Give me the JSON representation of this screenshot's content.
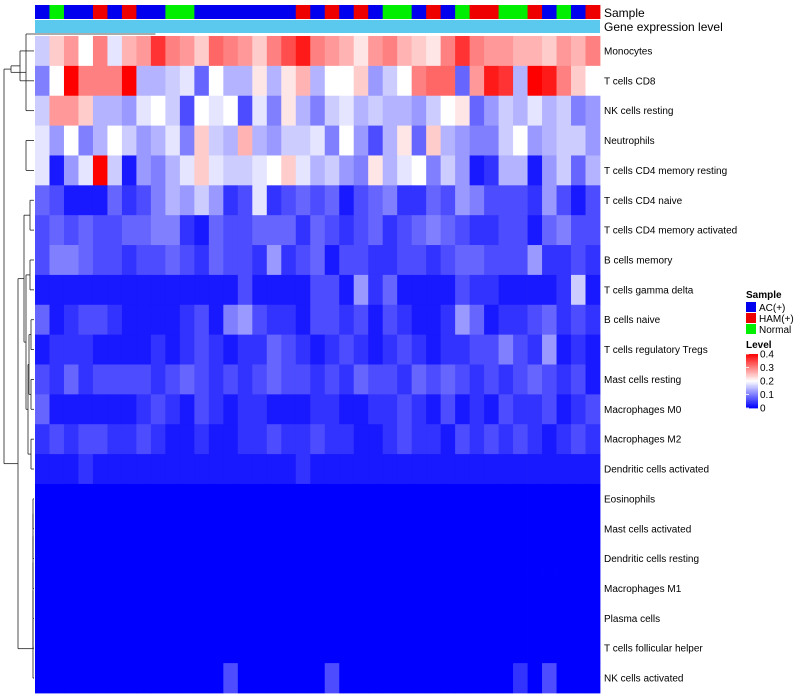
{
  "chart_data": {
    "type": "heatmap",
    "annotation_labels": {
      "sample": "Sample",
      "gene_expression": "Gene expression level"
    },
    "legend": {
      "sample_title": "Sample",
      "groups": [
        {
          "name": "AC(+)",
          "color": "#0000EE"
        },
        {
          "name": "HAM(+)",
          "color": "#EE0000"
        },
        {
          "name": "Normal",
          "color": "#00EE00"
        }
      ],
      "level_title": "Level",
      "level_ticks": [
        "0.4",
        "0.3",
        "0.2",
        "0.1",
        "0"
      ],
      "scale": {
        "min": 0,
        "max": 0.4,
        "low": "#0000FF",
        "mid": "#FFFFFF",
        "high": "#FF0000"
      }
    },
    "expression_bar_color": "#5BC8EE",
    "row_labels": [
      "Monocytes",
      "T cells CD8",
      "NK cells resting",
      "Neutrophils",
      "T cells CD4 memory resting",
      "T cells CD4 naive",
      "T cells CD4 memory activated",
      "B cells memory",
      "T cells gamma delta",
      "B cells naive",
      "T cells regulatory  Tregs",
      "Mast cells resting",
      "Macrophages M0",
      "Macrophages M2",
      "Dendritic cells activated",
      "Eosinophils",
      "Mast cells activated",
      "Dendritic cells resting",
      "Macrophages M1",
      "Plasma cells",
      "T cells follicular helper",
      "NK cells activated"
    ],
    "sample_groups": [
      "AC(+)",
      "Normal",
      "AC(+)",
      "AC(+)",
      "HAM(+)",
      "AC(+)",
      "HAM(+)",
      "AC(+)",
      "AC(+)",
      "Normal",
      "Normal",
      "AC(+)",
      "AC(+)",
      "AC(+)",
      "AC(+)",
      "AC(+)",
      "AC(+)",
      "AC(+)",
      "HAM(+)",
      "AC(+)",
      "HAM(+)",
      "AC(+)",
      "HAM(+)",
      "AC(+)",
      "Normal",
      "Normal",
      "AC(+)",
      "HAM(+)",
      "AC(+)",
      "Normal",
      "HAM(+)",
      "HAM(+)",
      "Normal",
      "Normal",
      "HAM(+)",
      "AC(+)",
      "Normal",
      "AC(+)",
      "HAM(+)"
    ],
    "values": [
      [
        0.16,
        0.24,
        0.28,
        0.2,
        0.3,
        0.18,
        0.26,
        0.28,
        0.36,
        0.3,
        0.28,
        0.24,
        0.32,
        0.3,
        0.28,
        0.24,
        0.3,
        0.34,
        0.38,
        0.3,
        0.28,
        0.26,
        0.22,
        0.28,
        0.3,
        0.26,
        0.24,
        0.22,
        0.3,
        0.36,
        0.3,
        0.28,
        0.28,
        0.26,
        0.26,
        0.24,
        0.28,
        0.26,
        0.3
      ],
      [
        0.1,
        0.2,
        0.4,
        0.3,
        0.3,
        0.3,
        0.4,
        0.14,
        0.14,
        0.16,
        0.18,
        0.08,
        0.2,
        0.14,
        0.14,
        0.22,
        0.14,
        0.22,
        0.26,
        0.14,
        0.2,
        0.2,
        0.24,
        0.12,
        0.16,
        0.2,
        0.3,
        0.32,
        0.32,
        0.08,
        0.28,
        0.38,
        0.36,
        0.14,
        0.4,
        0.38,
        0.3,
        0.24,
        0.2
      ],
      [
        0.16,
        0.28,
        0.28,
        0.24,
        0.14,
        0.14,
        0.12,
        0.18,
        0.2,
        0.16,
        0.06,
        0.2,
        0.18,
        0.2,
        0.06,
        0.18,
        0.1,
        0.22,
        0.14,
        0.1,
        0.16,
        0.18,
        0.14,
        0.16,
        0.14,
        0.14,
        0.12,
        0.16,
        0.2,
        0.22,
        0.08,
        0.12,
        0.16,
        0.14,
        0.18,
        0.14,
        0.16,
        0.1,
        0.12
      ],
      [
        0.18,
        0.12,
        0.2,
        0.1,
        0.14,
        0.2,
        0.16,
        0.12,
        0.14,
        0.18,
        0.1,
        0.24,
        0.16,
        0.14,
        0.26,
        0.14,
        0.12,
        0.16,
        0.16,
        0.18,
        0.1,
        0.2,
        0.12,
        0.06,
        0.14,
        0.22,
        0.08,
        0.24,
        0.14,
        0.12,
        0.1,
        0.1,
        0.16,
        0.2,
        0.12,
        0.14,
        0.16,
        0.16,
        0.12
      ],
      [
        0.18,
        0.02,
        0.12,
        0.18,
        0.4,
        0.16,
        0.02,
        0.12,
        0.1,
        0.14,
        0.18,
        0.24,
        0.18,
        0.16,
        0.16,
        0.18,
        0.2,
        0.24,
        0.18,
        0.14,
        0.16,
        0.12,
        0.1,
        0.22,
        0.14,
        0.18,
        0.2,
        0.1,
        0.16,
        0.12,
        0.02,
        0.04,
        0.14,
        0.14,
        0.02,
        0.12,
        0.16,
        0.08,
        0.14
      ],
      [
        0.08,
        0.06,
        0.02,
        0.02,
        0.02,
        0.08,
        0.04,
        0.06,
        0.1,
        0.14,
        0.12,
        0.16,
        0.12,
        0.04,
        0.06,
        0.18,
        0.04,
        0.06,
        0.08,
        0.06,
        0.08,
        0.02,
        0.06,
        0.08,
        0.1,
        0.04,
        0.04,
        0.08,
        0.06,
        0.12,
        0.1,
        0.06,
        0.06,
        0.06,
        0.04,
        0.12,
        0.06,
        0.02,
        0.06
      ],
      [
        0.06,
        0.08,
        0.06,
        0.08,
        0.06,
        0.06,
        0.08,
        0.08,
        0.1,
        0.1,
        0.04,
        0.02,
        0.08,
        0.06,
        0.06,
        0.08,
        0.08,
        0.08,
        0.04,
        0.08,
        0.06,
        0.04,
        0.06,
        0.08,
        0.04,
        0.06,
        0.08,
        0.1,
        0.08,
        0.06,
        0.04,
        0.04,
        0.06,
        0.06,
        0.02,
        0.08,
        0.1,
        0.06,
        0.06
      ],
      [
        0.06,
        0.1,
        0.1,
        0.08,
        0.06,
        0.06,
        0.04,
        0.06,
        0.06,
        0.08,
        0.06,
        0.04,
        0.08,
        0.06,
        0.06,
        0.04,
        0.12,
        0.04,
        0.06,
        0.08,
        0.02,
        0.06,
        0.06,
        0.04,
        0.04,
        0.06,
        0.06,
        0.04,
        0.06,
        0.08,
        0.08,
        0.06,
        0.06,
        0.06,
        0.12,
        0.04,
        0.04,
        0.06,
        0.04
      ],
      [
        0.02,
        0.02,
        0.02,
        0.02,
        0.02,
        0.02,
        0.02,
        0.02,
        0.02,
        0.02,
        0.02,
        0.02,
        0.02,
        0.02,
        0.06,
        0.02,
        0.02,
        0.02,
        0.02,
        0.06,
        0.06,
        0.02,
        0.12,
        0.04,
        0.08,
        0.02,
        0.02,
        0.02,
        0.02,
        0.06,
        0.04,
        0.04,
        0.02,
        0.02,
        0.02,
        0.02,
        0.04,
        0.16,
        0.02
      ],
      [
        0.08,
        0.02,
        0.04,
        0.06,
        0.06,
        0.04,
        0.02,
        0.02,
        0.02,
        0.02,
        0.04,
        0.06,
        0.02,
        0.1,
        0.12,
        0.06,
        0.04,
        0.04,
        0.02,
        0.06,
        0.06,
        0.04,
        0.06,
        0.02,
        0.06,
        0.04,
        0.02,
        0.02,
        0.04,
        0.12,
        0.08,
        0.02,
        0.04,
        0.04,
        0.06,
        0.08,
        0.04,
        0.06,
        0.04
      ],
      [
        0.02,
        0.04,
        0.04,
        0.04,
        0.02,
        0.02,
        0.02,
        0.02,
        0.04,
        0.02,
        0.04,
        0.06,
        0.04,
        0.02,
        0.04,
        0.04,
        0.08,
        0.06,
        0.04,
        0.02,
        0.04,
        0.06,
        0.04,
        0.02,
        0.04,
        0.06,
        0.04,
        0.02,
        0.04,
        0.04,
        0.06,
        0.06,
        0.1,
        0.06,
        0.04,
        0.12,
        0.02,
        0.04,
        0.02
      ],
      [
        0.06,
        0.04,
        0.08,
        0.04,
        0.06,
        0.06,
        0.06,
        0.06,
        0.04,
        0.06,
        0.08,
        0.06,
        0.04,
        0.06,
        0.04,
        0.06,
        0.08,
        0.06,
        0.06,
        0.04,
        0.06,
        0.04,
        0.08,
        0.06,
        0.06,
        0.04,
        0.08,
        0.06,
        0.08,
        0.06,
        0.04,
        0.06,
        0.04,
        0.06,
        0.08,
        0.06,
        0.04,
        0.06,
        0.02
      ],
      [
        0.08,
        0.02,
        0.02,
        0.02,
        0.02,
        0.02,
        0.02,
        0.04,
        0.06,
        0.04,
        0.02,
        0.06,
        0.04,
        0.02,
        0.04,
        0.04,
        0.02,
        0.02,
        0.02,
        0.04,
        0.04,
        0.02,
        0.02,
        0.04,
        0.04,
        0.06,
        0.04,
        0.02,
        0.06,
        0.02,
        0.04,
        0.02,
        0.06,
        0.04,
        0.04,
        0.06,
        0.02,
        0.04,
        0.06
      ],
      [
        0.04,
        0.06,
        0.04,
        0.06,
        0.06,
        0.04,
        0.04,
        0.06,
        0.04,
        0.02,
        0.02,
        0.04,
        0.02,
        0.02,
        0.04,
        0.04,
        0.06,
        0.04,
        0.04,
        0.06,
        0.04,
        0.04,
        0.02,
        0.02,
        0.04,
        0.06,
        0.04,
        0.04,
        0.02,
        0.06,
        0.04,
        0.06,
        0.04,
        0.06,
        0.04,
        0.02,
        0.04,
        0.06,
        0.04
      ],
      [
        0.02,
        0.02,
        0.02,
        0.04,
        0.02,
        0.02,
        0.02,
        0.02,
        0.02,
        0.02,
        0.02,
        0.02,
        0.02,
        0.02,
        0.02,
        0.02,
        0.02,
        0.02,
        0.04,
        0.02,
        0.02,
        0.02,
        0.02,
        0.02,
        0.02,
        0.02,
        0.02,
        0.02,
        0.02,
        0.02,
        0.02,
        0.02,
        0.02,
        0.02,
        0.02,
        0.02,
        0.02,
        0.02,
        0.02
      ],
      [
        0,
        0,
        0,
        0,
        0,
        0,
        0,
        0,
        0,
        0,
        0,
        0,
        0,
        0,
        0,
        0,
        0,
        0,
        0,
        0,
        0,
        0,
        0,
        0,
        0,
        0,
        0,
        0,
        0,
        0,
        0,
        0,
        0,
        0,
        0,
        0,
        0,
        0,
        0
      ],
      [
        0,
        0,
        0,
        0,
        0,
        0,
        0,
        0,
        0,
        0,
        0,
        0,
        0,
        0,
        0,
        0,
        0,
        0,
        0,
        0,
        0,
        0,
        0,
        0,
        0,
        0,
        0,
        0,
        0,
        0,
        0,
        0,
        0,
        0,
        0,
        0,
        0,
        0,
        0
      ],
      [
        0,
        0,
        0,
        0,
        0,
        0,
        0,
        0,
        0,
        0,
        0,
        0,
        0,
        0,
        0,
        0,
        0,
        0,
        0,
        0,
        0,
        0,
        0,
        0,
        0,
        0,
        0,
        0,
        0,
        0,
        0,
        0,
        0,
        0,
        0,
        0,
        0,
        0,
        0
      ],
      [
        0,
        0,
        0,
        0,
        0,
        0,
        0,
        0,
        0,
        0,
        0,
        0,
        0,
        0,
        0,
        0,
        0,
        0,
        0,
        0,
        0,
        0,
        0,
        0,
        0,
        0,
        0,
        0,
        0,
        0,
        0,
        0,
        0,
        0,
        0,
        0,
        0,
        0,
        0
      ],
      [
        0,
        0,
        0,
        0,
        0,
        0,
        0,
        0,
        0,
        0,
        0,
        0,
        0,
        0,
        0,
        0,
        0,
        0,
        0,
        0,
        0,
        0,
        0,
        0,
        0,
        0,
        0,
        0,
        0,
        0,
        0,
        0,
        0,
        0,
        0,
        0,
        0,
        0,
        0
      ],
      [
        0,
        0,
        0,
        0,
        0,
        0,
        0,
        0,
        0,
        0,
        0,
        0,
        0,
        0,
        0,
        0,
        0,
        0,
        0,
        0,
        0,
        0,
        0,
        0,
        0,
        0,
        0,
        0,
        0,
        0,
        0,
        0,
        0,
        0,
        0,
        0,
        0,
        0,
        0
      ],
      [
        0,
        0,
        0,
        0,
        0,
        0,
        0,
        0,
        0,
        0,
        0,
        0,
        0,
        0.06,
        0,
        0,
        0,
        0,
        0,
        0,
        0.06,
        0,
        0,
        0,
        0,
        0,
        0,
        0,
        0,
        0,
        0,
        0,
        0,
        0.04,
        0,
        0.06,
        0,
        0,
        0
      ]
    ]
  }
}
